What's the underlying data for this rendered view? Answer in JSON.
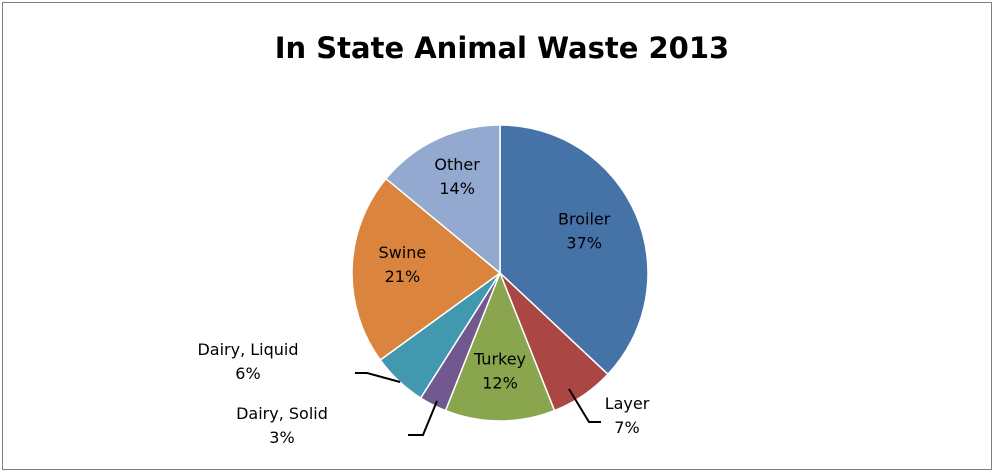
{
  "chart_data": {
    "type": "pie",
    "title": "In State Animal Waste 2013",
    "slices": [
      {
        "label": "Broiler",
        "value": 37,
        "display": "37%",
        "color": "#4572a7"
      },
      {
        "label": "Layer",
        "value": 7,
        "display": "7%",
        "color": "#aa4643"
      },
      {
        "label": "Turkey",
        "value": 12,
        "display": "12%",
        "color": "#89a54e"
      },
      {
        "label": "Dairy, Solid",
        "value": 3,
        "display": "3%",
        "color": "#71588f"
      },
      {
        "label": "Dairy, Liquid",
        "value": 6,
        "display": "6%",
        "color": "#4198af"
      },
      {
        "label": "Swine",
        "value": 21,
        "display": "21%",
        "color": "#db843d"
      },
      {
        "label": "Other",
        "value": 14,
        "display": "14%",
        "color": "#93a9cf"
      }
    ],
    "start_angle_deg": 0,
    "direction": "clockwise",
    "legend": "none"
  }
}
